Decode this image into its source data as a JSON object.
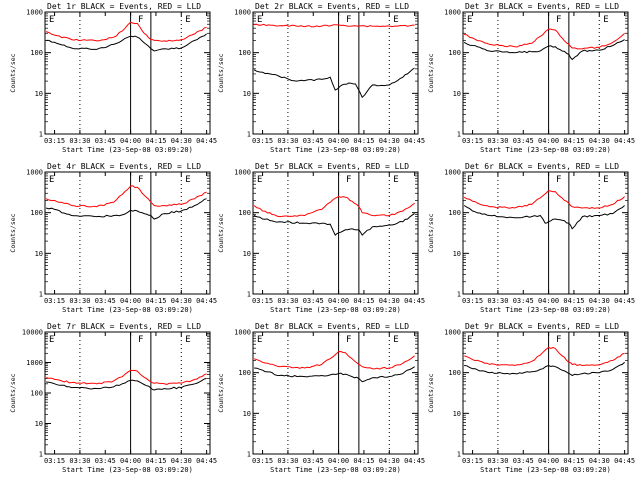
{
  "figure": {
    "xlabel": "Start Time (23-Sep-08 03:09:20)",
    "ylabel": "Counts/sec",
    "x_ticks": [
      "03:15",
      "03:30",
      "03:45",
      "04:00",
      "04:15",
      "04:30",
      "04:45"
    ],
    "region_labels": [
      "E",
      "F",
      "E"
    ],
    "colors": {
      "events": "#000000",
      "lld": "#ff0000",
      "axes": "#000000"
    }
  },
  "chart_data": [
    {
      "type": "line",
      "title": "Det 1r BLACK = Events, RED = LLD",
      "yscale": "log",
      "ylim": [
        1,
        1000
      ],
      "y_ticks": [
        "1",
        "10",
        "100",
        "1000"
      ],
      "xlim": [
        "03:09:20",
        "04:47:00"
      ],
      "series": [
        {
          "name": "Events",
          "color": "#000000",
          "x": [
            "03:10",
            "03:15",
            "03:25",
            "03:40",
            "03:50",
            "03:55",
            "04:00",
            "04:04",
            "04:08",
            "04:12",
            "04:14",
            "04:20",
            "04:30",
            "04:38",
            "04:45"
          ],
          "y": [
            200,
            180,
            130,
            120,
            160,
            200,
            255,
            240,
            175,
            125,
            110,
            125,
            130,
            200,
            290
          ]
        },
        {
          "name": "LLD",
          "color": "#ff0000",
          "x": [
            "03:10",
            "03:15",
            "03:25",
            "03:40",
            "03:50",
            "03:55",
            "04:00",
            "04:04",
            "04:08",
            "04:12",
            "04:14",
            "04:20",
            "04:30",
            "04:38",
            "04:45"
          ],
          "y": [
            330,
            270,
            210,
            195,
            240,
            340,
            560,
            520,
            300,
            210,
            200,
            195,
            210,
            290,
            420
          ]
        }
      ],
      "vlines": {
        "dotted": [
          "03:30",
          "04:30"
        ],
        "solid": [
          "04:00",
          "04:12"
        ]
      }
    },
    {
      "type": "line",
      "title": "Det 2r BLACK = Events, RED = LLD",
      "yscale": "log",
      "ylim": [
        1,
        1000
      ],
      "y_ticks": [
        "1",
        "10",
        "100",
        "1000"
      ],
      "xlim": [
        "03:09:20",
        "04:47:00"
      ],
      "series": [
        {
          "name": "Events",
          "color": "#000000",
          "x": [
            "03:10",
            "03:15",
            "03:25",
            "03:35",
            "03:50",
            "03:55",
            "03:58",
            "04:02",
            "04:06",
            "04:10",
            "04:14",
            "04:20",
            "04:30",
            "04:38",
            "04:45"
          ],
          "y": [
            38,
            33,
            26,
            20,
            22,
            25,
            12,
            16,
            18,
            17,
            8,
            16,
            16,
            25,
            42
          ]
        },
        {
          "name": "LLD",
          "color": "#ff0000",
          "x": [
            "03:10",
            "03:20",
            "03:35",
            "03:50",
            "04:00",
            "04:10",
            "04:20",
            "04:35",
            "04:45"
          ],
          "y": [
            490,
            470,
            450,
            450,
            480,
            460,
            450,
            450,
            480
          ]
        }
      ],
      "vlines": {
        "dotted": [
          "03:30",
          "04:30"
        ],
        "solid": [
          "04:00",
          "04:12"
        ]
      }
    },
    {
      "type": "line",
      "title": "Det 3r BLACK = Events, RED = LLD",
      "yscale": "log",
      "ylim": [
        1,
        1000
      ],
      "y_ticks": [
        "1",
        "10",
        "100",
        "1000"
      ],
      "xlim": [
        "03:09:20",
        "04:47:00"
      ],
      "series": [
        {
          "name": "Events",
          "color": "#000000",
          "x": [
            "03:10",
            "03:15",
            "03:25",
            "03:40",
            "03:50",
            "03:55",
            "04:00",
            "04:04",
            "04:08",
            "04:12",
            "04:14",
            "04:20",
            "04:30",
            "04:38",
            "04:45"
          ],
          "y": [
            180,
            150,
            110,
            100,
            105,
            110,
            145,
            140,
            110,
            90,
            68,
            110,
            115,
            150,
            210
          ]
        },
        {
          "name": "LLD",
          "color": "#ff0000",
          "x": [
            "03:10",
            "03:15",
            "03:25",
            "03:40",
            "03:50",
            "03:55",
            "04:00",
            "04:04",
            "04:08",
            "04:12",
            "04:14",
            "04:20",
            "04:30",
            "04:38",
            "04:45"
          ],
          "y": [
            280,
            230,
            160,
            140,
            170,
            250,
            380,
            360,
            230,
            160,
            130,
            125,
            135,
            180,
            300
          ]
        }
      ],
      "vlines": {
        "dotted": [
          "03:30",
          "04:30"
        ],
        "solid": [
          "04:00",
          "04:12"
        ]
      }
    },
    {
      "type": "line",
      "title": "Det 4r BLACK = Events, RED = LLD",
      "yscale": "log",
      "ylim": [
        1,
        1000
      ],
      "y_ticks": [
        "1",
        "10",
        "100",
        "1000"
      ],
      "xlim": [
        "03:09:20",
        "04:47:00"
      ],
      "series": [
        {
          "name": "Events",
          "color": "#000000",
          "x": [
            "03:10",
            "03:15",
            "03:25",
            "03:40",
            "03:50",
            "03:55",
            "04:00",
            "04:04",
            "04:08",
            "04:12",
            "04:14",
            "04:20",
            "04:30",
            "04:38",
            "04:45"
          ],
          "y": [
            130,
            120,
            85,
            80,
            85,
            88,
            115,
            110,
            95,
            85,
            70,
            95,
            110,
            150,
            220
          ]
        },
        {
          "name": "LLD",
          "color": "#ff0000",
          "x": [
            "03:10",
            "03:15",
            "03:25",
            "03:40",
            "03:50",
            "03:55",
            "04:00",
            "04:04",
            "04:08",
            "04:12",
            "04:14",
            "04:20",
            "04:30",
            "04:38",
            "04:45"
          ],
          "y": [
            220,
            200,
            150,
            140,
            180,
            280,
            450,
            420,
            270,
            180,
            150,
            150,
            160,
            220,
            320
          ]
        }
      ],
      "vlines": {
        "dotted": [
          "03:30",
          "04:30"
        ],
        "solid": [
          "04:00",
          "04:12"
        ]
      }
    },
    {
      "type": "line",
      "title": "Det 5r BLACK = Events, RED = LLD",
      "yscale": "log",
      "ylim": [
        1,
        1000
      ],
      "y_ticks": [
        "1",
        "10",
        "100",
        "1000"
      ],
      "xlim": [
        "03:09:20",
        "04:47:00"
      ],
      "series": [
        {
          "name": "Events",
          "color": "#000000",
          "x": [
            "03:10",
            "03:15",
            "03:25",
            "03:40",
            "03:50",
            "03:55",
            "03:58",
            "04:00",
            "04:04",
            "04:08",
            "04:12",
            "04:14",
            "04:20",
            "04:30",
            "04:38",
            "04:45"
          ],
          "y": [
            85,
            70,
            60,
            55,
            55,
            52,
            28,
            32,
            38,
            40,
            38,
            28,
            45,
            50,
            60,
            95
          ]
        },
        {
          "name": "LLD",
          "color": "#ff0000",
          "x": [
            "03:10",
            "03:15",
            "03:25",
            "03:40",
            "03:50",
            "03:55",
            "04:00",
            "04:04",
            "04:08",
            "04:12",
            "04:14",
            "04:20",
            "04:30",
            "04:38",
            "04:45"
          ],
          "y": [
            150,
            110,
            80,
            85,
            120,
            180,
            250,
            240,
            190,
            140,
            100,
            85,
            85,
            110,
            170
          ]
        }
      ],
      "vlines": {
        "dotted": [
          "03:30",
          "04:30"
        ],
        "solid": [
          "04:00",
          "04:12"
        ]
      }
    },
    {
      "type": "line",
      "title": "Det 6r BLACK = Events, RED = LLD",
      "yscale": "log",
      "ylim": [
        1,
        1000
      ],
      "y_ticks": [
        "1",
        "10",
        "100",
        "1000"
      ],
      "xlim": [
        "03:09:20",
        "04:47:00"
      ],
      "series": [
        {
          "name": "Events",
          "color": "#000000",
          "x": [
            "03:10",
            "03:15",
            "03:25",
            "03:40",
            "03:50",
            "03:55",
            "03:58",
            "04:00",
            "04:04",
            "04:08",
            "04:12",
            "04:14",
            "04:20",
            "04:30",
            "04:38",
            "04:45"
          ],
          "y": [
            150,
            110,
            85,
            75,
            80,
            85,
            55,
            60,
            70,
            65,
            55,
            40,
            80,
            85,
            95,
            150
          ]
        },
        {
          "name": "LLD",
          "color": "#ff0000",
          "x": [
            "03:10",
            "03:15",
            "03:25",
            "03:40",
            "03:50",
            "03:55",
            "04:00",
            "04:04",
            "04:08",
            "04:12",
            "04:14",
            "04:20",
            "04:30",
            "04:38",
            "04:45"
          ],
          "y": [
            240,
            190,
            140,
            130,
            160,
            230,
            350,
            330,
            230,
            170,
            140,
            130,
            130,
            160,
            250
          ]
        }
      ],
      "vlines": {
        "dotted": [
          "03:30",
          "04:30"
        ],
        "solid": [
          "04:00",
          "04:12"
        ]
      }
    },
    {
      "type": "line",
      "title": "Det 7r BLACK = Events, RED = LLD",
      "yscale": "log",
      "ylim": [
        1,
        10000
      ],
      "y_ticks": [
        "1",
        "10",
        "100",
        "1000",
        "10000"
      ],
      "xlim": [
        "03:09:20",
        "04:47:00"
      ],
      "series": [
        {
          "name": "Events",
          "color": "#000000",
          "x": [
            "03:10",
            "03:15",
            "03:25",
            "03:40",
            "03:50",
            "03:55",
            "04:00",
            "04:04",
            "04:08",
            "04:12",
            "04:14",
            "04:20",
            "04:30",
            "04:38",
            "04:45"
          ],
          "y": [
            230,
            200,
            150,
            140,
            160,
            200,
            260,
            250,
            190,
            145,
            125,
            140,
            150,
            200,
            300
          ]
        },
        {
          "name": "LLD",
          "color": "#ff0000",
          "x": [
            "03:10",
            "03:15",
            "03:25",
            "03:40",
            "03:50",
            "03:55",
            "04:00",
            "04:04",
            "04:08",
            "04:12",
            "04:14",
            "04:20",
            "04:30",
            "04:38",
            "04:45"
          ],
          "y": [
            320,
            280,
            220,
            200,
            250,
            340,
            550,
            520,
            330,
            230,
            210,
            200,
            210,
            280,
            420
          ]
        }
      ],
      "vlines": {
        "dotted": [
          "03:30",
          "04:30"
        ],
        "solid": [
          "04:00",
          "04:12"
        ]
      }
    },
    {
      "type": "line",
      "title": "Det 8r BLACK = Events, RED = LLD",
      "yscale": "log",
      "ylim": [
        1,
        1000
      ],
      "y_ticks": [
        "1",
        "10",
        "100",
        "1000"
      ],
      "xlim": [
        "03:09:20",
        "04:47:00"
      ],
      "series": [
        {
          "name": "Events",
          "color": "#000000",
          "x": [
            "03:10",
            "03:15",
            "03:25",
            "03:40",
            "03:50",
            "03:55",
            "04:00",
            "04:04",
            "04:08",
            "04:12",
            "04:14",
            "04:20",
            "04:30",
            "04:38",
            "04:45"
          ],
          "y": [
            130,
            115,
            85,
            80,
            85,
            88,
            95,
            92,
            80,
            72,
            60,
            75,
            80,
            95,
            140
          ]
        },
        {
          "name": "LLD",
          "color": "#ff0000",
          "x": [
            "03:10",
            "03:15",
            "03:25",
            "03:40",
            "03:50",
            "03:55",
            "04:00",
            "04:04",
            "04:08",
            "04:12",
            "04:14",
            "04:20",
            "04:30",
            "04:38",
            "04:45"
          ],
          "y": [
            220,
            180,
            140,
            130,
            160,
            220,
            330,
            310,
            220,
            160,
            140,
            125,
            130,
            170,
            260
          ]
        }
      ],
      "vlines": {
        "dotted": [
          "03:30",
          "04:30"
        ],
        "solid": [
          "04:00",
          "04:12"
        ]
      }
    },
    {
      "type": "line",
      "title": "Det 9r BLACK = Events, RED = LLD",
      "yscale": "log",
      "ylim": [
        1,
        1000
      ],
      "y_ticks": [
        "1",
        "10",
        "100",
        "1000"
      ],
      "xlim": [
        "03:09:20",
        "04:47:00"
      ],
      "series": [
        {
          "name": "Events",
          "color": "#000000",
          "x": [
            "03:10",
            "03:15",
            "03:25",
            "03:40",
            "03:50",
            "03:55",
            "04:00",
            "04:04",
            "04:08",
            "04:12",
            "04:14",
            "04:20",
            "04:30",
            "04:38",
            "04:45"
          ],
          "y": [
            150,
            125,
            100,
            95,
            105,
            120,
            150,
            140,
            115,
            95,
            85,
            95,
            100,
            120,
            180
          ]
        },
        {
          "name": "LLD",
          "color": "#ff0000",
          "x": [
            "03:10",
            "03:15",
            "03:25",
            "03:40",
            "03:50",
            "03:55",
            "04:00",
            "04:04",
            "04:08",
            "04:12",
            "04:14",
            "04:20",
            "04:30",
            "04:38",
            "04:45"
          ],
          "y": [
            260,
            210,
            160,
            150,
            190,
            270,
            420,
            390,
            260,
            180,
            160,
            150,
            155,
            200,
            300
          ]
        }
      ],
      "vlines": {
        "dotted": [
          "03:30",
          "04:30"
        ],
        "solid": [
          "04:00",
          "04:12"
        ]
      }
    }
  ]
}
